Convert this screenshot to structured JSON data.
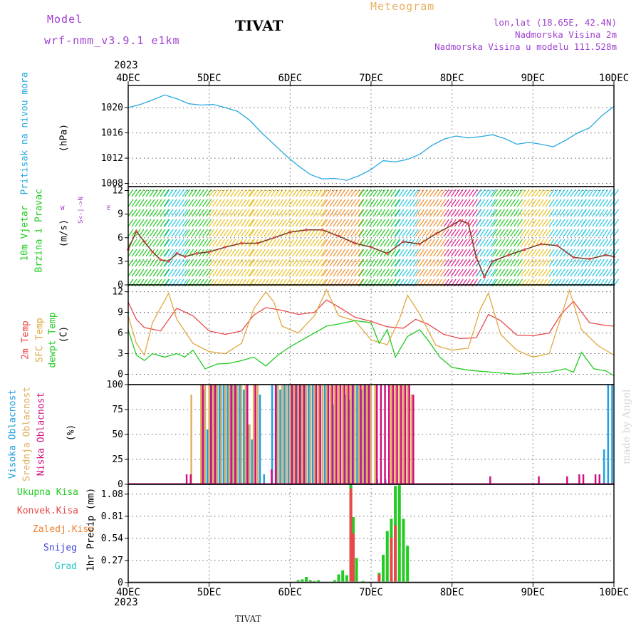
{
  "header": {
    "model_label": "Model",
    "model_name": "wrf-nmm_v3.9.1 e1km",
    "station": "TIVAT",
    "product": "Meteogram",
    "lonlat": "lon,lat (18.65E, 42.4N)",
    "elevation": "Nadmorska Visina 2m",
    "model_elevation": "Nadmorska Visina u modelu 111.528m"
  },
  "time_axis": {
    "year": "2023",
    "ticks": [
      "4DEC",
      "5DEC",
      "6DEC",
      "7DEC",
      "8DEC",
      "9DEC",
      "10DEC"
    ]
  },
  "footer": {
    "station": "TIVAT",
    "watermark": "made by Angel"
  },
  "colors": {
    "pressure": "#29a8e0",
    "wind_green": "#22cc22",
    "wind_cyan": "#22c8e0",
    "wind_yellow": "#e8c020",
    "wind_orange": "#f09030",
    "wind_magenta": "#e0208a",
    "temp2m": "#e84848",
    "sfc": "#e0a840",
    "dewpt": "#22cc22",
    "high_cloud": "#20a0e0",
    "mid_cloud": "#e0b060",
    "low_cloud": "#d01080",
    "total_precip": "#22cc22",
    "conv_precip": "#e84848",
    "frz_precip": "#f08030",
    "snow": "#4040e0",
    "grad": "#20c8c8"
  },
  "chart_data": [
    {
      "type": "line",
      "id": "pressure",
      "ylabel_name": "Pritisak na nivou mora",
      "ylabel_unit": "(hPa)",
      "ylim": [
        1007.5,
        1023.5
      ],
      "yticks": [
        1008,
        1012,
        1016,
        1020
      ],
      "ytick_labels": [
        "1008",
        "1012",
        "1016",
        "1020"
      ],
      "grid": true,
      "series": [
        {
          "x": [
            0,
            0.15,
            0.3,
            0.45,
            0.6,
            0.75,
            0.9,
            1.05,
            1.2,
            1.35,
            1.5,
            1.65,
            1.8,
            1.95,
            2.1,
            2.25,
            2.4,
            2.55,
            2.7,
            2.85,
            3.0,
            3.15,
            3.3,
            3.45,
            3.6,
            3.75,
            3.9,
            4.05,
            4.2,
            4.35,
            4.5,
            4.65,
            4.8,
            4.95,
            5.1,
            5.25,
            5.4,
            5.55,
            5.7,
            5.85,
            6.0
          ],
          "values": [
            1020.0,
            1020.5,
            1021.2,
            1022.0,
            1021.4,
            1020.6,
            1020.4,
            1020.5,
            1020.0,
            1019.4,
            1018.0,
            1016.0,
            1014.2,
            1012.4,
            1010.8,
            1009.4,
            1008.7,
            1008.8,
            1008.5,
            1009.2,
            1010.2,
            1011.6,
            1011.4,
            1011.8,
            1012.6,
            1014.0,
            1015.0,
            1015.5,
            1015.2,
            1015.4,
            1015.7,
            1015.1,
            1014.2,
            1014.5,
            1014.2,
            1013.8,
            1014.8,
            1016.0,
            1016.8,
            1018.7,
            1020.2
          ]
        }
      ]
    },
    {
      "type": "line",
      "id": "wind",
      "ylabel_name": "10m Vjetar",
      "ylabel_name2": "Brzina i Pravac",
      "ylabel_unit": "(m/s)",
      "compass_ns": "S<-|->N",
      "compass_w": "W",
      "compass_e": "E",
      "ylim": [
        0,
        12.5
      ],
      "yticks": [
        0,
        3,
        6,
        9,
        12
      ],
      "ytick_labels": [
        "0",
        "3",
        "6",
        "9",
        "12"
      ],
      "grid": true,
      "barb_bands": [
        {
          "from": 0.0,
          "to": 0.45,
          "color": "wind_green"
        },
        {
          "from": 0.45,
          "to": 0.7,
          "color": "wind_cyan"
        },
        {
          "from": 0.7,
          "to": 1.0,
          "color": "wind_green"
        },
        {
          "from": 1.0,
          "to": 1.5,
          "color": "wind_yellow"
        },
        {
          "from": 1.5,
          "to": 2.4,
          "color": "wind_yellow"
        },
        {
          "from": 2.4,
          "to": 2.85,
          "color": "wind_orange"
        },
        {
          "from": 2.85,
          "to": 3.3,
          "color": "wind_green"
        },
        {
          "from": 3.3,
          "to": 3.55,
          "color": "wind_cyan"
        },
        {
          "from": 3.55,
          "to": 3.9,
          "color": "wind_orange"
        },
        {
          "from": 3.9,
          "to": 4.3,
          "color": "wind_magenta"
        },
        {
          "from": 4.3,
          "to": 4.5,
          "color": "wind_cyan"
        },
        {
          "from": 4.5,
          "to": 4.85,
          "color": "wind_green"
        },
        {
          "from": 4.85,
          "to": 5.2,
          "color": "wind_yellow"
        },
        {
          "from": 5.2,
          "to": 5.6,
          "color": "wind_cyan"
        },
        {
          "from": 5.6,
          "to": 6.0,
          "color": "wind_cyan"
        }
      ],
      "series": [
        {
          "x": [
            0,
            0.1,
            0.2,
            0.3,
            0.4,
            0.5,
            0.6,
            0.7,
            0.85,
            1.0,
            1.2,
            1.4,
            1.6,
            1.8,
            2.0,
            2.2,
            2.4,
            2.6,
            2.8,
            3.0,
            3.2,
            3.4,
            3.6,
            3.8,
            4.0,
            4.1,
            4.2,
            4.3,
            4.4,
            4.5,
            4.7,
            4.9,
            5.1,
            5.3,
            5.5,
            5.7,
            5.9,
            6.0
          ],
          "values": [
            4.5,
            6.8,
            5.5,
            4.2,
            3.2,
            3.0,
            4.0,
            3.6,
            4.0,
            4.2,
            4.8,
            5.3,
            5.3,
            6.0,
            6.7,
            7.0,
            7.0,
            6.2,
            5.3,
            4.8,
            4.0,
            5.5,
            5.2,
            6.5,
            7.6,
            8.2,
            7.8,
            3.5,
            1.0,
            3.0,
            3.8,
            4.5,
            5.2,
            5.0,
            3.5,
            3.3,
            3.8,
            3.6
          ]
        }
      ]
    },
    {
      "type": "line",
      "id": "temperature",
      "ylabel_2m": "2m Temp",
      "ylabel_sfc": "SFC Temp",
      "ylabel_dew": "dewpt Temp",
      "ylabel_unit": "(C)",
      "ylim": [
        -1.5,
        13
      ],
      "yticks": [
        0,
        3,
        6,
        9,
        12
      ],
      "ytick_labels": [
        "0",
        "3",
        "6",
        "9",
        "12"
      ],
      "grid": true,
      "series": [
        {
          "name": "2m Temp",
          "color": "temp2m",
          "x": [
            0,
            0.1,
            0.2,
            0.4,
            0.6,
            0.8,
            1.0,
            1.2,
            1.4,
            1.55,
            1.7,
            1.9,
            2.1,
            2.3,
            2.45,
            2.6,
            2.8,
            3.0,
            3.2,
            3.4,
            3.55,
            3.7,
            3.9,
            4.1,
            4.3,
            4.45,
            4.6,
            4.8,
            5.0,
            5.2,
            5.35,
            5.5,
            5.7,
            5.9,
            6.0
          ],
          "values": [
            10.5,
            8.0,
            6.8,
            6.3,
            9.6,
            8.5,
            6.3,
            5.8,
            6.3,
            8.6,
            9.7,
            9.3,
            8.7,
            9.0,
            10.8,
            9.8,
            8.3,
            7.7,
            6.9,
            6.7,
            8.0,
            7.3,
            5.8,
            5.2,
            5.3,
            8.7,
            7.8,
            5.7,
            5.6,
            6.0,
            8.8,
            10.6,
            7.5,
            7.1,
            7.0
          ]
        },
        {
          "name": "SFC Temp",
          "color": "sfc",
          "x": [
            0,
            0.1,
            0.2,
            0.3,
            0.5,
            0.6,
            0.8,
            1.0,
            1.2,
            1.4,
            1.55,
            1.7,
            1.8,
            1.9,
            2.1,
            2.3,
            2.45,
            2.6,
            2.8,
            3.0,
            3.2,
            3.35,
            3.45,
            3.6,
            3.8,
            4.0,
            4.2,
            4.35,
            4.45,
            4.6,
            4.8,
            5.0,
            5.2,
            5.35,
            5.45,
            5.6,
            5.8,
            6.0
          ],
          "values": [
            8.5,
            4.5,
            2.8,
            7.5,
            11.8,
            8.0,
            4.5,
            3.3,
            3.0,
            4.5,
            9.5,
            12.0,
            10.5,
            7.0,
            6.0,
            8.5,
            12.3,
            8.5,
            7.8,
            5.0,
            4.3,
            8.0,
            11.5,
            8.8,
            4.2,
            3.5,
            3.8,
            9.5,
            11.8,
            5.8,
            3.5,
            2.5,
            3.0,
            8.5,
            12.2,
            6.5,
            4.2,
            2.8
          ]
        },
        {
          "name": "dewpt Temp",
          "color": "dewpt",
          "x": [
            0,
            0.1,
            0.2,
            0.3,
            0.45,
            0.6,
            0.7,
            0.8,
            0.95,
            1.1,
            1.25,
            1.4,
            1.55,
            1.7,
            1.85,
            2.0,
            2.15,
            2.3,
            2.45,
            2.6,
            2.8,
            3.0,
            3.1,
            3.2,
            3.3,
            3.45,
            3.6,
            3.7,
            3.85,
            4.0,
            4.2,
            4.4,
            4.6,
            4.8,
            5.0,
            5.2,
            5.4,
            5.5,
            5.6,
            5.75,
            5.9,
            6.0
          ],
          "values": [
            6.5,
            2.8,
            2.0,
            3.0,
            2.5,
            3.0,
            2.5,
            3.5,
            0.8,
            1.5,
            1.6,
            2.0,
            2.5,
            1.2,
            2.8,
            4.0,
            5.0,
            6.0,
            7.0,
            7.3,
            7.8,
            7.5,
            4.5,
            6.5,
            2.5,
            5.5,
            6.5,
            5.0,
            2.5,
            1.0,
            0.6,
            0.4,
            0.2,
            0.0,
            0.2,
            0.3,
            0.8,
            0.3,
            3.2,
            0.8,
            0.5,
            -0.2
          ]
        }
      ]
    },
    {
      "type": "bar",
      "id": "clouds",
      "ylabel_high": "Visoka Oblacnost",
      "ylabel_mid": "Srednja Oblacnost",
      "ylabel_low": "Niska Oblacnost",
      "ylabel_unit": "(%)",
      "ylim": [
        0,
        100
      ],
      "yticks": [
        0,
        25,
        50,
        75,
        100
      ],
      "ytick_labels": [
        "0",
        "25",
        "50",
        "75",
        "100"
      ],
      "grid": true,
      "series": [
        {
          "name": "Visoka Oblacnost",
          "color": "high_cloud",
          "x": [
            0.95,
            1.0,
            1.05,
            1.1,
            1.15,
            1.2,
            1.25,
            1.3,
            1.35,
            1.4,
            1.45,
            1.5,
            1.55,
            1.65,
            1.7,
            1.8,
            1.85,
            1.9,
            1.95,
            2.0,
            2.05,
            2.1,
            2.15,
            2.2,
            2.25,
            2.3,
            2.45,
            2.55,
            2.7,
            2.75,
            2.8,
            2.85,
            2.9,
            2.95,
            3.0,
            3.1,
            3.2,
            5.9,
            5.95,
            6.0
          ],
          "values": [
            95,
            55,
            100,
            100,
            100,
            100,
            100,
            100,
            100,
            100,
            95,
            60,
            45,
            90,
            10,
            100,
            100,
            95,
            100,
            100,
            100,
            100,
            100,
            100,
            100,
            100,
            100,
            80,
            90,
            85,
            100,
            100,
            95,
            100,
            100,
            5,
            5,
            35,
            100,
            100
          ]
        },
        {
          "name": "Srednja Oblacnost",
          "color": "mid_cloud",
          "x": [
            0.78,
            0.9,
            0.95,
            1.0,
            1.05,
            1.1,
            1.15,
            1.2,
            1.25,
            1.3,
            1.35,
            1.4,
            1.45,
            1.5,
            1.55,
            1.6,
            1.85,
            1.9,
            1.95,
            2.0,
            2.05,
            2.1,
            2.15,
            2.2,
            2.25,
            2.3,
            2.35,
            2.4,
            2.45,
            2.5,
            2.55,
            2.6,
            2.65,
            2.7,
            2.75,
            2.8,
            2.85,
            2.9,
            2.95,
            3.0,
            3.05,
            3.25,
            3.3,
            3.35,
            3.4,
            3.45,
            3.5
          ],
          "values": [
            90,
            100,
            100,
            100,
            100,
            100,
            100,
            100,
            100,
            100,
            100,
            100,
            100,
            60,
            100,
            100,
            100,
            100,
            100,
            100,
            100,
            100,
            100,
            100,
            100,
            100,
            100,
            100,
            100,
            100,
            100,
            100,
            100,
            100,
            100,
            100,
            100,
            100,
            100,
            100,
            100,
            100,
            100,
            100,
            100,
            100,
            90
          ]
        },
        {
          "name": "Niska Oblacnost",
          "color": "low_cloud",
          "x": [
            0.7,
            0.75,
            0.9,
            1.0,
            1.05,
            1.25,
            1.3,
            1.45,
            1.55,
            1.75,
            1.8,
            2.0,
            2.05,
            2.1,
            2.15,
            2.3,
            2.35,
            2.45,
            2.5,
            2.55,
            2.6,
            2.65,
            2.7,
            2.75,
            2.85,
            2.9,
            2.95,
            3.05,
            3.1,
            3.15,
            3.2,
            3.25,
            3.3,
            3.35,
            3.4,
            3.45,
            3.5,
            4.45,
            5.05,
            5.4,
            5.55,
            5.6,
            5.75,
            5.8
          ],
          "values": [
            10,
            10,
            100,
            100,
            100,
            100,
            100,
            100,
            100,
            15,
            100,
            100,
            100,
            100,
            100,
            100,
            100,
            100,
            100,
            100,
            100,
            100,
            100,
            100,
            100,
            100,
            100,
            100,
            100,
            100,
            100,
            100,
            100,
            100,
            100,
            100,
            90,
            8,
            8,
            8,
            10,
            10,
            10,
            10
          ]
        }
      ]
    },
    {
      "type": "bar",
      "id": "precip",
      "ylabel_unit": "1hr Precip (mm)",
      "legend": [
        "Ukupna Kisa",
        "Konvek.Kisa",
        "Zaledj.Kisa",
        "Snijeg",
        "Grad"
      ],
      "ylim": [
        0,
        1.2
      ],
      "yticks": [
        0,
        0.27,
        0.54,
        0.81,
        1.08
      ],
      "ytick_labels": [
        "0",
        "0.27",
        "0.54",
        "0.81",
        "1.08"
      ],
      "grid": true,
      "series": [
        {
          "name": "Ukupna Kisa",
          "color": "total_precip",
          "x": [
            2.1,
            2.15,
            2.2,
            2.25,
            2.3,
            2.35,
            2.55,
            2.6,
            2.65,
            2.7,
            2.75,
            2.78,
            2.82,
            2.9,
            3.1,
            3.15,
            3.2,
            3.25,
            3.3,
            3.35,
            3.4,
            3.45
          ],
          "values": [
            0.03,
            0.04,
            0.07,
            0.03,
            0.02,
            0.03,
            0.03,
            0.1,
            0.15,
            0.09,
            1.2,
            0.8,
            0.3,
            0.02,
            0.12,
            0.34,
            0.63,
            0.78,
            1.18,
            1.19,
            0.78,
            0.45
          ]
        },
        {
          "name": "Konvek.Kisa",
          "color": "conv_precip",
          "x": [
            2.75,
            2.78,
            3.1,
            3.25,
            3.3
          ],
          "values": [
            1.15,
            0.6,
            0.1,
            0.55,
            0.7
          ]
        }
      ]
    }
  ]
}
